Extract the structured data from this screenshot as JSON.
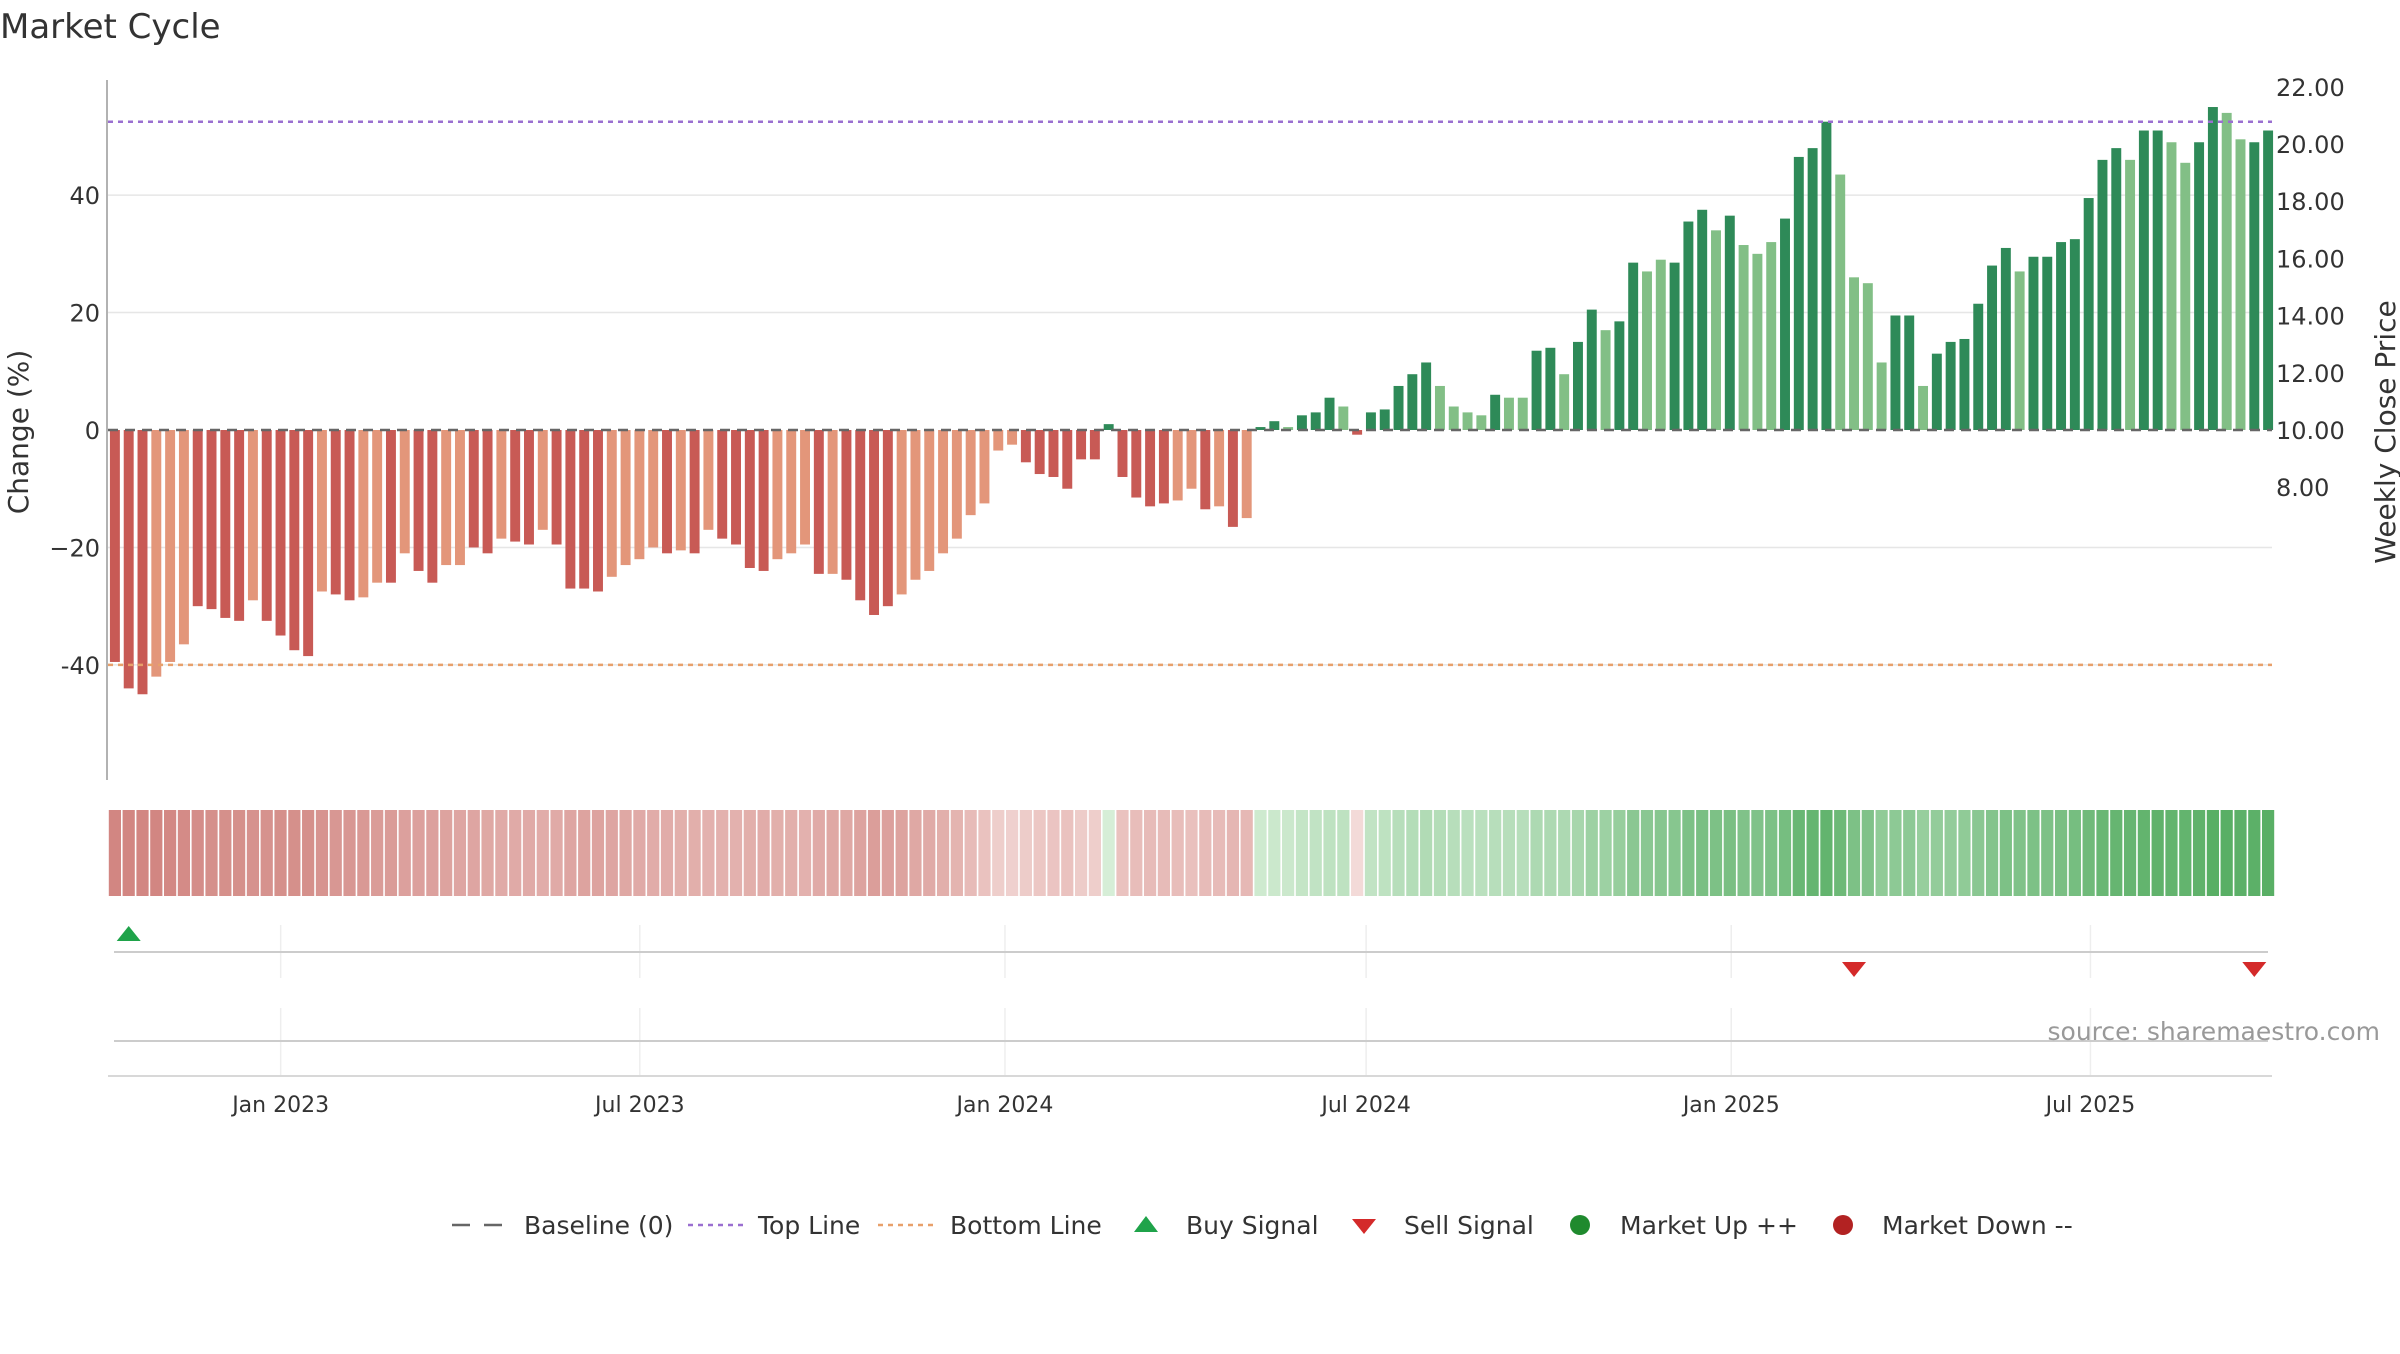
{
  "title": "Market Cycle",
  "source": "source: sharemaestro.com",
  "colors": {
    "bar_down_strong": "#c85a55",
    "bar_down_light": "#e3967a",
    "bar_up_strong": "#2e8a58",
    "bar_up_light": "#82bf86",
    "top_line": "#9a6fd0",
    "bottom_line": "#e8a06a",
    "baseline": "#666666",
    "buy": "#1fa34a",
    "sell": "#d42a2a",
    "market_up": "#1f8a2e",
    "market_down": "#b22222",
    "grid": "#e6e6e6"
  },
  "chart_data": {
    "type": "bar",
    "title": "Market Cycle",
    "ylabel": "Change (%)",
    "y2label": "Weekly Close Price",
    "ylim": [
      -59,
      60
    ],
    "y2lim": [
      7.06,
      24.2
    ],
    "y_ticks": [
      40,
      20,
      0,
      -20,
      -40
    ],
    "y_tick_labels": [
      "40",
      "20",
      "0",
      "−20",
      "-40"
    ],
    "y2_ticks": [
      22,
      20,
      18,
      16,
      14,
      12,
      10,
      8
    ],
    "y2_tick_labels": [
      "22.00",
      "20.00",
      "18.00",
      "16.00",
      "14.00",
      "12.00",
      "10.00",
      "8.00"
    ],
    "x_start": "2022-10-06",
    "x_end": "2025-10-02",
    "x_ticks": [
      "2023-01-01",
      "2023-07-01",
      "2024-01-01",
      "2024-07-01",
      "2025-01-01",
      "2025-07-01"
    ],
    "x_tick_labels": [
      "Jan 2023",
      "Jul 2023",
      "Jan 2024",
      "Jul 2024",
      "Jan 2025",
      "Jul 2025"
    ],
    "top_line": 52.5,
    "bottom_line": -40,
    "baseline": 0,
    "values": [
      -39.5,
      -44,
      -45,
      -42,
      -39.5,
      -36.5,
      -30,
      -30.5,
      -32,
      -32.5,
      -29,
      -32.5,
      -35,
      -37.5,
      -38.5,
      -27.5,
      -28,
      -29,
      -28.5,
      -26,
      -26,
      -21,
      -24,
      -26,
      -23,
      -23,
      -20,
      -21,
      -18.5,
      -19,
      -19.5,
      -17,
      -19.5,
      -27,
      -27,
      -27.5,
      -25,
      -23,
      -22,
      -20,
      -21,
      -20.5,
      -21,
      -17,
      -18.5,
      -19.5,
      -23.5,
      -24,
      -22,
      -21,
      -19.5,
      -24.5,
      -24.5,
      -25.5,
      -29,
      -31.5,
      -30,
      -28,
      -25.5,
      -24,
      -21,
      -18.5,
      -14.5,
      -12.5,
      -3.5,
      -2.5,
      -5.5,
      -7.5,
      -8,
      -10,
      -5,
      -5,
      1,
      -8,
      -11.5,
      -13,
      -12.5,
      -12,
      -10,
      -13.5,
      -13,
      -16.5,
      -15,
      0.5,
      1.5,
      0.5,
      2.5,
      3,
      5.5,
      4,
      -0.8,
      3,
      3.5,
      7.5,
      9.5,
      11.5,
      7.5,
      4,
      3,
      2.5,
      6,
      5.5,
      5.5,
      13.5,
      14,
      9.5,
      15,
      20.5,
      17,
      18.5,
      28.5,
      27,
      29,
      28.5,
      35.5,
      37.5,
      34,
      36.5,
      31.5,
      30,
      32,
      36,
      46.5,
      48,
      52.5,
      43.5,
      26,
      25,
      11.5,
      19.5,
      19.5,
      7.5,
      13,
      15,
      15.5,
      21.5,
      28,
      31,
      27,
      29.5,
      29.5,
      32,
      32.5,
      39.5,
      46,
      48,
      46,
      51,
      51,
      49,
      45.5,
      49,
      55,
      54,
      49.5,
      49,
      51
    ],
    "strong": [
      1,
      1,
      1,
      0,
      0,
      0,
      1,
      1,
      1,
      1,
      0,
      1,
      1,
      1,
      1,
      0,
      1,
      1,
      0,
      0,
      1,
      0,
      1,
      1,
      0,
      0,
      1,
      1,
      0,
      1,
      1,
      0,
      1,
      1,
      1,
      1,
      0,
      0,
      0,
      0,
      1,
      0,
      1,
      0,
      1,
      1,
      1,
      1,
      0,
      0,
      0,
      1,
      0,
      1,
      1,
      1,
      1,
      0,
      0,
      0,
      0,
      0,
      0,
      0,
      0,
      0,
      1,
      1,
      1,
      1,
      1,
      1,
      1,
      1,
      1,
      1,
      1,
      0,
      0,
      1,
      0,
      1,
      0,
      1,
      1,
      0,
      1,
      1,
      1,
      0,
      1,
      1,
      1,
      1,
      1,
      1,
      0,
      0,
      0,
      0,
      1,
      0,
      0,
      1,
      1,
      0,
      1,
      1,
      0,
      1,
      1,
      0,
      0,
      1,
      1,
      1,
      0,
      1,
      0,
      0,
      0,
      1,
      1,
      1,
      1,
      0,
      0,
      0,
      0,
      1,
      1,
      0,
      1,
      1,
      1,
      1,
      1,
      1,
      0,
      1,
      1,
      1,
      1,
      1,
      1,
      1,
      0,
      1,
      1,
      0,
      0,
      1,
      1,
      0,
      0,
      1,
      1
    ],
    "strip": [
      -0.8,
      -0.8,
      -0.8,
      -0.8,
      -0.78,
      -0.76,
      -0.74,
      -0.72,
      -0.72,
      -0.72,
      -0.7,
      -0.7,
      -0.72,
      -0.72,
      -0.72,
      -0.68,
      -0.66,
      -0.66,
      -0.64,
      -0.62,
      -0.62,
      -0.58,
      -0.58,
      -0.58,
      -0.56,
      -0.54,
      -0.54,
      -0.52,
      -0.5,
      -0.5,
      -0.5,
      -0.48,
      -0.5,
      -0.54,
      -0.56,
      -0.56,
      -0.54,
      -0.52,
      -0.5,
      -0.48,
      -0.48,
      -0.46,
      -0.46,
      -0.44,
      -0.44,
      -0.44,
      -0.46,
      -0.48,
      -0.46,
      -0.46,
      -0.44,
      -0.5,
      -0.52,
      -0.52,
      -0.56,
      -0.6,
      -0.58,
      -0.56,
      -0.52,
      -0.5,
      -0.46,
      -0.42,
      -0.36,
      -0.3,
      -0.2,
      -0.18,
      -0.22,
      -0.26,
      -0.28,
      -0.3,
      -0.22,
      -0.2,
      0.05,
      -0.3,
      -0.34,
      -0.36,
      -0.36,
      -0.34,
      -0.32,
      -0.36,
      -0.36,
      -0.4,
      -0.38,
      0.1,
      0.12,
      0.12,
      0.16,
      0.18,
      0.2,
      0.2,
      -0.1,
      0.18,
      0.2,
      0.24,
      0.26,
      0.28,
      0.26,
      0.24,
      0.22,
      0.22,
      0.24,
      0.24,
      0.24,
      0.3,
      0.3,
      0.3,
      0.34,
      0.4,
      0.4,
      0.44,
      0.52,
      0.52,
      0.54,
      0.54,
      0.6,
      0.62,
      0.6,
      0.62,
      0.58,
      0.58,
      0.6,
      0.64,
      0.72,
      0.74,
      0.76,
      0.7,
      0.6,
      0.58,
      0.48,
      0.5,
      0.5,
      0.44,
      0.46,
      0.46,
      0.48,
      0.52,
      0.56,
      0.6,
      0.58,
      0.6,
      0.6,
      0.62,
      0.64,
      0.68,
      0.72,
      0.74,
      0.74,
      0.76,
      0.78,
      0.76,
      0.76,
      0.78,
      0.82,
      0.82,
      0.8,
      0.8,
      0.82
    ],
    "buy_signals": [
      1
    ],
    "sell_signals": [
      126,
      155
    ],
    "legend": {
      "baseline": "Baseline (0)",
      "top": "Top Line",
      "bottom": "Bottom Line",
      "buy": "Buy Signal",
      "sell": "Sell Signal",
      "up": "Market Up ++",
      "down": "Market Down --"
    },
    "legend_placement": "bottom-center",
    "grid": true
  }
}
